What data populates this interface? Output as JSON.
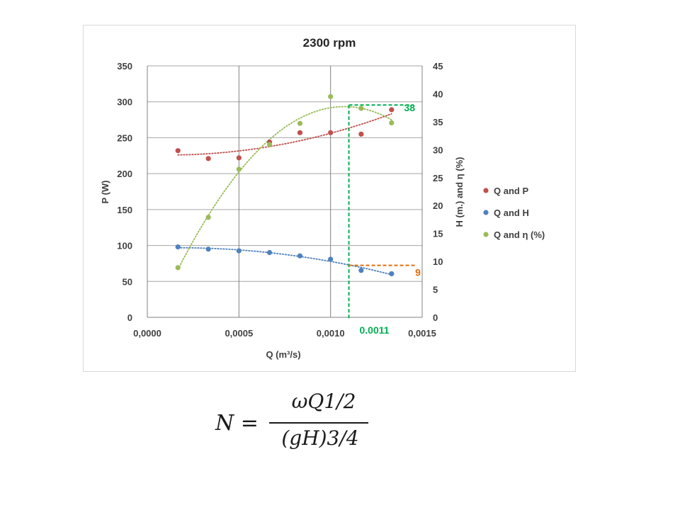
{
  "chart_data": {
    "type": "scatter",
    "title": "2300 rpm",
    "xlabel": "Q (m³/s)",
    "ylabel_left": "P (W)",
    "ylabel_right": "H (m.) and  η (%)",
    "x_ticks": [
      "0,0000",
      "0,0005",
      "0,0010",
      "0,0015"
    ],
    "x_range": [
      0,
      0.0015
    ],
    "y_left_ticks": [
      "0",
      "50",
      "100",
      "150",
      "200",
      "250",
      "300",
      "350"
    ],
    "y_left_range": [
      0,
      350
    ],
    "y_right_ticks": [
      "0",
      "5",
      "10",
      "15",
      "20",
      "25",
      "30",
      "35",
      "40",
      "45"
    ],
    "y_right_range": [
      0,
      45
    ],
    "grid": "vertical major lines; horizontal lines",
    "legend_position": "right",
    "series": [
      {
        "name": "Q and P",
        "axis": "left",
        "color": "#c0504d",
        "x": [
          0.000167,
          0.000333,
          0.0005,
          0.000667,
          0.000833,
          0.001,
          0.001167,
          0.001333
        ],
        "y": [
          232,
          221,
          222,
          244,
          257,
          257,
          255,
          289
        ],
        "trend": "polynomial"
      },
      {
        "name": "Q and H",
        "axis": "right",
        "color": "#4f81bd",
        "x": [
          0.000167,
          0.000333,
          0.0005,
          0.000667,
          0.000833,
          0.001,
          0.001167,
          0.001333
        ],
        "y": [
          12.6,
          12.2,
          11.9,
          11.6,
          11.0,
          10.4,
          8.4,
          7.8
        ],
        "trend": "polynomial"
      },
      {
        "name": "Q and  η (%)",
        "axis": "right",
        "color": "#9bbb59",
        "x": [
          0.000167,
          0.000333,
          0.0005,
          0.000667,
          0.000833,
          0.001,
          0.001167,
          0.001333
        ],
        "y": [
          8.9,
          17.9,
          26.5,
          30.9,
          34.7,
          39.5,
          37.4,
          34.8
        ],
        "trend": "polynomial"
      }
    ],
    "annotations": [
      {
        "label": "38",
        "y": 38,
        "axis": "right",
        "color": "#00b050"
      },
      {
        "label": "9",
        "y": 9.3,
        "axis": "right",
        "color": "#e36c09"
      },
      {
        "label": "0.0011",
        "x": 0.0011,
        "color": "#00b050"
      }
    ]
  },
  "formula": {
    "lhs": "N =",
    "numerator": "ωQ1/2",
    "denominator": "(gH)3/4"
  }
}
